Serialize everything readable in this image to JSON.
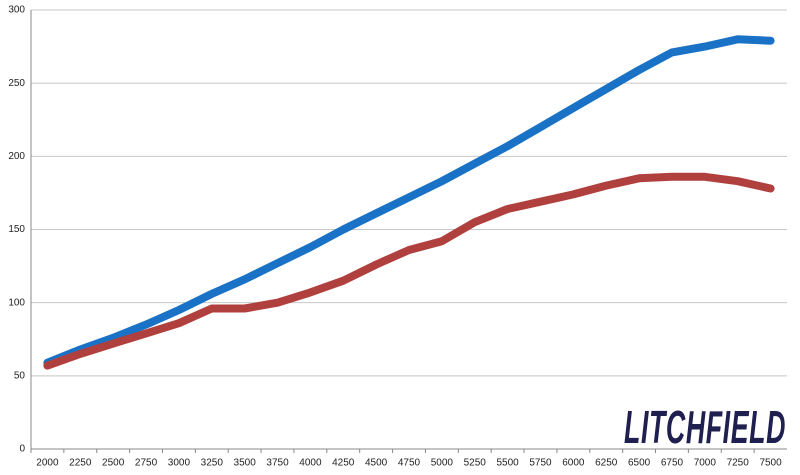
{
  "chart_data": {
    "type": "line",
    "categories": [
      "2000",
      "2250",
      "2500",
      "2750",
      "3000",
      "3250",
      "3500",
      "3750",
      "4000",
      "4250",
      "4500",
      "4750",
      "5000",
      "5250",
      "5500",
      "5750",
      "6000",
      "6250",
      "6500",
      "6750",
      "7000",
      "7250",
      "7500"
    ],
    "series": [
      {
        "color": "#1a72c6",
        "values": [
          59,
          68,
          76,
          85,
          95,
          106,
          116,
          127,
          138,
          150,
          161,
          172,
          183,
          195,
          207,
          220,
          233,
          246,
          259,
          271,
          275,
          280,
          279
        ]
      },
      {
        "color": "#b0403e",
        "values": [
          57,
          65,
          72,
          79,
          86,
          96,
          96,
          100,
          107,
          115,
          126,
          136,
          142,
          155,
          164,
          169,
          174,
          180,
          185,
          186,
          186,
          183,
          178
        ]
      }
    ],
    "ylim": [
      0,
      300
    ],
    "yticks": [
      0,
      50,
      100,
      150,
      200,
      250,
      300
    ],
    "grid": true,
    "logo": "LITCHFIELD"
  }
}
